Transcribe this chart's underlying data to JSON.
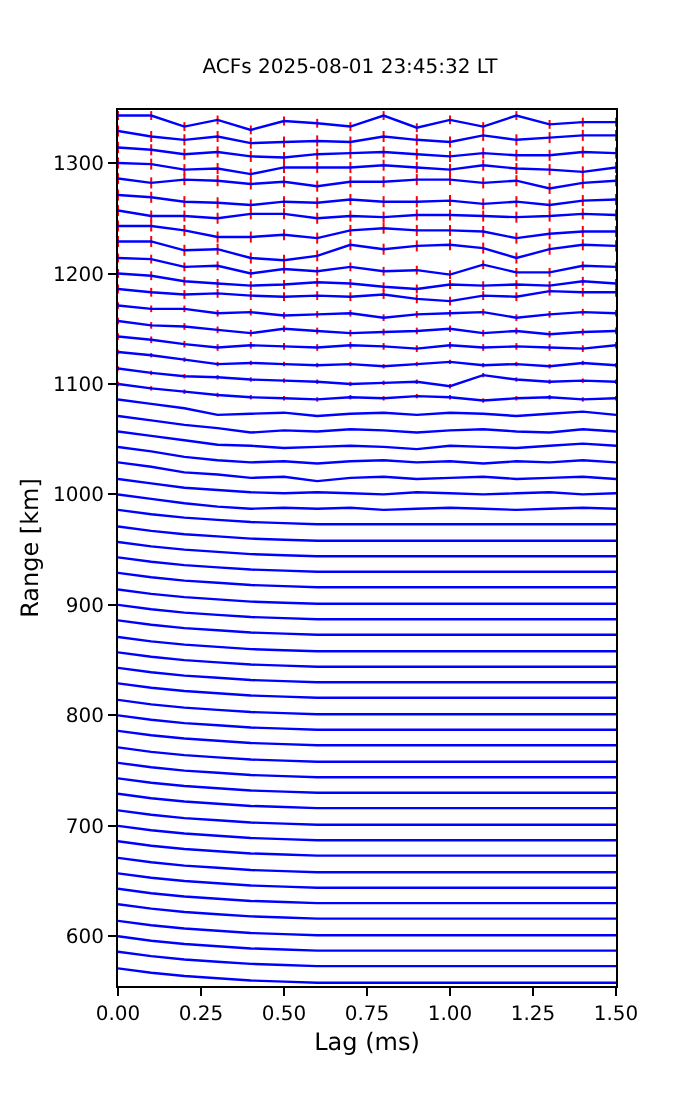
{
  "chart_data": {
    "type": "line",
    "title": "ACFs 2025-08-01 23:45:32 LT",
    "xlabel": "Lag (ms)",
    "ylabel": "Range [km]",
    "x": [
      0,
      0.1,
      0.2,
      0.3,
      0.4,
      0.5,
      0.6,
      0.7,
      0.8,
      0.9,
      1.0,
      1.1,
      1.2,
      1.3,
      1.4,
      1.5
    ],
    "xlim": [
      0,
      1.5
    ],
    "xticks": [
      {
        "value": 0,
        "label": "0.00"
      },
      {
        "value": 0.25,
        "label": "0.25"
      },
      {
        "value": 0.5,
        "label": "0.50"
      },
      {
        "value": 0.75,
        "label": "0.75"
      },
      {
        "value": 1.0,
        "label": "1.00"
      },
      {
        "value": 1.25,
        "label": "1.25"
      },
      {
        "value": 1.5,
        "label": "1.50"
      }
    ],
    "ylim": [
      555,
      1348
    ],
    "yticks": [
      600,
      700,
      800,
      900,
      1000,
      1100,
      1200,
      1300
    ],
    "marker": "none",
    "line_style": "solid",
    "color": "#0000ff",
    "series": [
      {
        "values": [
          571,
          567,
          564,
          562,
          560,
          559,
          558,
          558,
          558,
          558,
          558,
          558,
          558,
          558,
          558,
          558
        ]
      },
      {
        "values": [
          586,
          582,
          579,
          577,
          575,
          574,
          573,
          573,
          573,
          573,
          573,
          573,
          573,
          573,
          573,
          573
        ]
      },
      {
        "values": [
          600,
          596,
          593,
          591,
          589,
          588,
          587,
          587,
          587,
          587,
          587,
          587,
          587,
          587,
          587,
          587
        ]
      },
      {
        "values": [
          614,
          610,
          607,
          605,
          603,
          602,
          601,
          601,
          601,
          601,
          601,
          601,
          601,
          601,
          601,
          601
        ]
      },
      {
        "values": [
          629,
          625,
          622,
          620,
          618,
          617,
          616,
          616,
          616,
          616,
          616,
          616,
          616,
          616,
          616,
          616
        ]
      },
      {
        "values": [
          643,
          639,
          636,
          634,
          632,
          631,
          630,
          630,
          630,
          630,
          630,
          630,
          630,
          630,
          630,
          630
        ]
      },
      {
        "values": [
          657,
          653,
          650,
          648,
          646,
          645,
          644,
          644,
          644,
          644,
          644,
          644,
          644,
          644,
          644,
          644
        ]
      },
      {
        "values": [
          671,
          667,
          664,
          662,
          660,
          659,
          658,
          658,
          658,
          658,
          658,
          658,
          658,
          658,
          658,
          658
        ]
      },
      {
        "values": [
          686,
          682,
          679,
          677,
          675,
          674,
          673,
          673,
          673,
          673,
          673,
          673,
          673,
          673,
          673,
          673
        ]
      },
      {
        "values": [
          700,
          696,
          693,
          691,
          689,
          688,
          687,
          687,
          687,
          687,
          687,
          687,
          687,
          687,
          687,
          687
        ]
      },
      {
        "values": [
          714,
          710,
          707,
          705,
          703,
          702,
          701,
          701,
          701,
          701,
          701,
          701,
          701,
          701,
          701,
          701
        ]
      },
      {
        "values": [
          729,
          725,
          722,
          720,
          718,
          717,
          716,
          716,
          716,
          716,
          716,
          716,
          716,
          716,
          716,
          716
        ]
      },
      {
        "values": [
          743,
          739,
          736,
          734,
          732,
          731,
          730,
          730,
          730,
          730,
          730,
          730,
          730,
          730,
          730,
          730
        ]
      },
      {
        "values": [
          757,
          753,
          750,
          748,
          746,
          745,
          744,
          744,
          744,
          744,
          744,
          744,
          744,
          744,
          744,
          744
        ]
      },
      {
        "values": [
          771,
          767,
          764,
          762,
          760,
          759,
          758,
          758,
          758,
          758,
          758,
          758,
          758,
          758,
          758,
          758
        ]
      },
      {
        "values": [
          786,
          782,
          779,
          777,
          775,
          774,
          773,
          773,
          773,
          773,
          773,
          773,
          773,
          773,
          773,
          773
        ]
      },
      {
        "values": [
          800,
          796,
          793,
          791,
          789,
          788,
          787,
          787,
          787,
          787,
          787,
          787,
          787,
          787,
          787,
          787
        ]
      },
      {
        "values": [
          814,
          810,
          807,
          805,
          803,
          802,
          801,
          801,
          801,
          801,
          801,
          801,
          801,
          801,
          801,
          801
        ]
      },
      {
        "values": [
          829,
          825,
          822,
          820,
          818,
          817,
          816,
          816,
          816,
          816,
          816,
          816,
          816,
          816,
          816,
          816
        ]
      },
      {
        "values": [
          843,
          839,
          836,
          834,
          832,
          831,
          830,
          830,
          830,
          830,
          830,
          830,
          830,
          830,
          830,
          830
        ]
      },
      {
        "values": [
          857,
          853,
          850,
          848,
          846,
          845,
          844,
          844,
          844,
          844,
          844,
          844,
          844,
          844,
          844,
          844
        ]
      },
      {
        "values": [
          871,
          867,
          864,
          862,
          860,
          859,
          858,
          858,
          858,
          858,
          858,
          858,
          858,
          858,
          858,
          858
        ]
      },
      {
        "values": [
          886,
          882,
          879,
          877,
          875,
          874,
          873,
          873,
          873,
          873,
          873,
          873,
          873,
          873,
          873,
          873
        ]
      },
      {
        "values": [
          900,
          896,
          893,
          891,
          889,
          888,
          887,
          887,
          887,
          887,
          887,
          887,
          887,
          887,
          887,
          887
        ]
      },
      {
        "values": [
          914,
          910,
          907,
          905,
          903,
          902,
          901,
          901,
          901,
          901,
          901,
          901,
          901,
          901,
          901,
          901
        ]
      },
      {
        "values": [
          929,
          925,
          922,
          920,
          918,
          917,
          916,
          916,
          916,
          916,
          916,
          916,
          916,
          916,
          916,
          916
        ]
      },
      {
        "values": [
          943,
          939,
          936,
          934,
          932,
          931,
          930,
          930,
          930,
          930,
          930,
          930,
          930,
          930,
          930,
          930
        ]
      },
      {
        "values": [
          957,
          953,
          950,
          948,
          946,
          945,
          944,
          944,
          944,
          944,
          944,
          944,
          944,
          944,
          944,
          944
        ]
      },
      {
        "values": [
          971,
          967,
          964,
          962,
          960,
          959,
          958,
          958,
          958,
          958,
          958,
          958,
          958,
          958,
          958,
          958
        ]
      },
      {
        "values": [
          986,
          982,
          979,
          977,
          975,
          974,
          973,
          973,
          973,
          973,
          973,
          973,
          973,
          973,
          973,
          973
        ]
      },
      {
        "values": [
          1000,
          996,
          992,
          989,
          987,
          988,
          987,
          988,
          986,
          987,
          988,
          987,
          986,
          987,
          988,
          987
        ]
      },
      {
        "values": [
          1014,
          1010,
          1006,
          1004,
          1002,
          1001,
          1002,
          1001,
          1000,
          1002,
          1001,
          1000,
          1001,
          1002,
          1000,
          1001
        ]
      },
      {
        "values": [
          1029,
          1025,
          1020,
          1018,
          1015,
          1016,
          1012,
          1015,
          1016,
          1014,
          1015,
          1016,
          1014,
          1015,
          1016,
          1014
        ]
      },
      {
        "values": [
          1043,
          1039,
          1034,
          1031,
          1029,
          1030,
          1028,
          1030,
          1031,
          1029,
          1030,
          1028,
          1030,
          1029,
          1031,
          1029
        ]
      },
      {
        "values": [
          1057,
          1053,
          1049,
          1045,
          1044,
          1042,
          1043,
          1044,
          1043,
          1041,
          1044,
          1043,
          1042,
          1044,
          1046,
          1044
        ]
      },
      {
        "values": [
          1071,
          1067,
          1063,
          1060,
          1056,
          1058,
          1057,
          1059,
          1058,
          1056,
          1058,
          1059,
          1057,
          1056,
          1059,
          1057
        ]
      },
      {
        "values": [
          1086,
          1082,
          1078,
          1072,
          1073,
          1074,
          1071,
          1073,
          1074,
          1072,
          1074,
          1073,
          1071,
          1073,
          1075,
          1072
        ]
      },
      {
        "values": [
          1100,
          1096,
          1093,
          1090,
          1088,
          1087,
          1086,
          1088,
          1087,
          1089,
          1088,
          1085,
          1087,
          1088,
          1086,
          1087
        ],
        "errors": [
          2,
          2,
          2,
          2,
          2,
          2,
          2,
          2,
          2,
          2,
          2,
          2,
          2,
          2,
          2,
          2
        ]
      },
      {
        "values": [
          1114,
          1110,
          1107,
          1106,
          1104,
          1103,
          1102,
          1100,
          1101,
          1102,
          1098,
          1108,
          1104,
          1102,
          1103,
          1102
        ],
        "errors": [
          2,
          2,
          2,
          2,
          2,
          2,
          2,
          2,
          2,
          2,
          2,
          2,
          2,
          2,
          2,
          2
        ]
      },
      {
        "values": [
          1129,
          1126,
          1122,
          1118,
          1119,
          1118,
          1117,
          1118,
          1116,
          1118,
          1120,
          1117,
          1118,
          1116,
          1119,
          1117
        ],
        "errors": [
          2,
          2,
          2,
          2,
          2,
          2,
          2,
          2,
          2,
          2,
          2,
          2,
          2,
          2,
          2,
          2
        ]
      },
      {
        "values": [
          1143,
          1140,
          1136,
          1133,
          1135,
          1134,
          1133,
          1135,
          1134,
          1132,
          1135,
          1133,
          1134,
          1133,
          1132,
          1135
        ],
        "errors": [
          3,
          3,
          3,
          3,
          3,
          3,
          3,
          3,
          3,
          3,
          3,
          3,
          3,
          3,
          3,
          3
        ]
      },
      {
        "values": [
          1157,
          1153,
          1152,
          1149,
          1146,
          1150,
          1148,
          1146,
          1147,
          1148,
          1150,
          1146,
          1148,
          1145,
          1147,
          1148
        ],
        "errors": [
          3,
          3,
          3,
          3,
          3,
          3,
          3,
          3,
          3,
          3,
          3,
          3,
          3,
          3,
          3,
          3
        ]
      },
      {
        "values": [
          1171,
          1168,
          1168,
          1164,
          1165,
          1162,
          1163,
          1164,
          1160,
          1163,
          1164,
          1165,
          1160,
          1163,
          1165,
          1164
        ],
        "errors": [
          3,
          3,
          3,
          3,
          3,
          3,
          3,
          3,
          3,
          3,
          3,
          3,
          3,
          3,
          3,
          3
        ]
      },
      {
        "values": [
          1186,
          1183,
          1181,
          1182,
          1180,
          1179,
          1180,
          1179,
          1181,
          1177,
          1175,
          1180,
          1179,
          1184,
          1183,
          1183
        ],
        "errors": [
          4,
          4,
          4,
          4,
          4,
          4,
          4,
          4,
          4,
          4,
          4,
          4,
          4,
          4,
          4,
          4
        ]
      },
      {
        "values": [
          1200,
          1198,
          1193,
          1191,
          1189,
          1190,
          1192,
          1191,
          1188,
          1186,
          1190,
          1189,
          1190,
          1189,
          1193,
          1191
        ],
        "errors": [
          4,
          4,
          4,
          4,
          4,
          4,
          4,
          4,
          4,
          4,
          4,
          4,
          4,
          4,
          4,
          4
        ]
      },
      {
        "values": [
          1214,
          1213,
          1206,
          1207,
          1200,
          1204,
          1202,
          1206,
          1202,
          1203,
          1199,
          1208,
          1201,
          1201,
          1207,
          1206
        ],
        "errors": [
          4,
          4,
          4,
          4,
          4,
          4,
          4,
          4,
          4,
          4,
          4,
          4,
          4,
          4,
          4,
          4
        ]
      },
      {
        "values": [
          1229,
          1229,
          1221,
          1222,
          1214,
          1212,
          1216,
          1226,
          1222,
          1225,
          1226,
          1223,
          1214,
          1222,
          1226,
          1225
        ],
        "errors": [
          5,
          5,
          5,
          5,
          5,
          5,
          5,
          5,
          5,
          5,
          5,
          5,
          5,
          5,
          5,
          5
        ]
      },
      {
        "values": [
          1243,
          1243,
          1239,
          1233,
          1233,
          1235,
          1232,
          1239,
          1241,
          1239,
          1239,
          1238,
          1232,
          1236,
          1238,
          1238
        ],
        "errors": [
          5,
          5,
          5,
          5,
          5,
          5,
          5,
          5,
          5,
          5,
          5,
          5,
          5,
          5,
          5,
          5
        ]
      },
      {
        "values": [
          1257,
          1252,
          1252,
          1250,
          1254,
          1254,
          1250,
          1252,
          1251,
          1253,
          1253,
          1252,
          1251,
          1252,
          1254,
          1253
        ],
        "errors": [
          5,
          5,
          5,
          5,
          5,
          5,
          5,
          5,
          5,
          5,
          5,
          5,
          5,
          5,
          5,
          5
        ]
      },
      {
        "values": [
          1271,
          1269,
          1265,
          1264,
          1262,
          1265,
          1264,
          1267,
          1265,
          1265,
          1266,
          1263,
          1265,
          1262,
          1266,
          1267
        ],
        "errors": [
          5,
          5,
          5,
          5,
          5,
          5,
          5,
          5,
          5,
          5,
          5,
          5,
          5,
          5,
          5,
          5
        ]
      },
      {
        "values": [
          1286,
          1282,
          1285,
          1284,
          1281,
          1283,
          1279,
          1283,
          1283,
          1285,
          1285,
          1282,
          1284,
          1277,
          1282,
          1284
        ],
        "errors": [
          5,
          5,
          5,
          5,
          5,
          5,
          5,
          5,
          5,
          5,
          5,
          5,
          5,
          5,
          5,
          5
        ]
      },
      {
        "values": [
          1300,
          1299,
          1294,
          1295,
          1290,
          1296,
          1296,
          1296,
          1298,
          1296,
          1294,
          1298,
          1295,
          1294,
          1292,
          1296
        ],
        "errors": [
          5,
          5,
          5,
          5,
          5,
          5,
          5,
          5,
          5,
          5,
          5,
          5,
          5,
          5,
          5,
          5
        ]
      },
      {
        "values": [
          1314,
          1312,
          1308,
          1310,
          1306,
          1305,
          1308,
          1309,
          1310,
          1308,
          1306,
          1309,
          1307,
          1307,
          1310,
          1309
        ],
        "errors": [
          5,
          5,
          5,
          5,
          5,
          5,
          5,
          5,
          5,
          5,
          5,
          5,
          5,
          5,
          5,
          5
        ]
      },
      {
        "values": [
          1329,
          1324,
          1321,
          1324,
          1318,
          1319,
          1320,
          1319,
          1324,
          1321,
          1319,
          1325,
          1321,
          1323,
          1325,
          1325
        ],
        "errors": [
          5,
          5,
          5,
          5,
          5,
          5,
          5,
          5,
          5,
          5,
          5,
          5,
          5,
          5,
          5,
          5
        ]
      },
      {
        "values": [
          1343,
          1343,
          1333,
          1339,
          1330,
          1338,
          1336,
          1333,
          1343,
          1332,
          1339,
          1333,
          1343,
          1335,
          1337,
          1337
        ],
        "errors": [
          4,
          4,
          4,
          4,
          4,
          4,
          4,
          4,
          4,
          4,
          4,
          4,
          4,
          4,
          4,
          4
        ]
      }
    ]
  }
}
